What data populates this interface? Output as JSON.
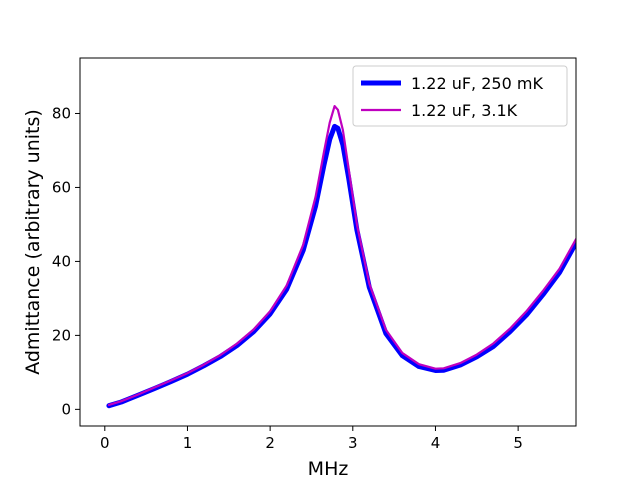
{
  "chart_data": {
    "type": "line",
    "title": "",
    "xlabel": "MHz",
    "ylabel": "Admittance (arbitrary units)",
    "xlim": [
      -0.3,
      5.7
    ],
    "ylim": [
      -4.5,
      95
    ],
    "xticks": [
      0,
      1,
      2,
      3,
      4,
      5
    ],
    "yticks": [
      0,
      20,
      40,
      60,
      80
    ],
    "grid": false,
    "legend_position": "top-right",
    "series": [
      {
        "name": "1.22 uF, 250 mK",
        "color": "#0000ff",
        "x": [
          0.05,
          0.2,
          0.4,
          0.6,
          0.8,
          1.0,
          1.2,
          1.4,
          1.6,
          1.8,
          2.0,
          2.2,
          2.4,
          2.55,
          2.65,
          2.72,
          2.78,
          2.82,
          2.88,
          2.95,
          3.05,
          3.2,
          3.4,
          3.6,
          3.8,
          4.0,
          4.1,
          4.3,
          4.5,
          4.7,
          4.9,
          5.1,
          5.3,
          5.5,
          5.7
        ],
        "y": [
          1.0,
          2.0,
          3.8,
          5.6,
          7.5,
          9.5,
          11.8,
          14.3,
          17.3,
          21.0,
          25.8,
          32.5,
          43.0,
          55.0,
          66.0,
          73.0,
          76.5,
          76.0,
          71.5,
          62.5,
          48.5,
          33.0,
          20.5,
          14.5,
          11.6,
          10.5,
          10.6,
          12.0,
          14.2,
          17.0,
          21.0,
          25.5,
          31.0,
          37.0,
          45.0
        ]
      },
      {
        "name": "1.22 uF, 3.1K",
        "color": "#bf00bf",
        "x": [
          0.05,
          0.2,
          0.4,
          0.6,
          0.8,
          1.0,
          1.2,
          1.4,
          1.6,
          1.8,
          2.0,
          2.2,
          2.4,
          2.55,
          2.65,
          2.72,
          2.78,
          2.82,
          2.88,
          2.95,
          3.05,
          3.2,
          3.4,
          3.6,
          3.8,
          4.0,
          4.1,
          4.3,
          4.5,
          4.7,
          4.9,
          5.1,
          5.3,
          5.5,
          5.7
        ],
        "y": [
          1.2,
          2.2,
          4.0,
          5.9,
          7.8,
          9.8,
          12.1,
          14.7,
          17.8,
          21.6,
          26.5,
          33.5,
          44.5,
          57.5,
          69.5,
          77.5,
          82.0,
          81.0,
          75.5,
          65.0,
          50.0,
          34.0,
          21.5,
          15.2,
          12.2,
          11.0,
          11.1,
          12.5,
          14.8,
          17.8,
          21.8,
          26.5,
          32.0,
          38.0,
          46.0
        ]
      }
    ]
  }
}
